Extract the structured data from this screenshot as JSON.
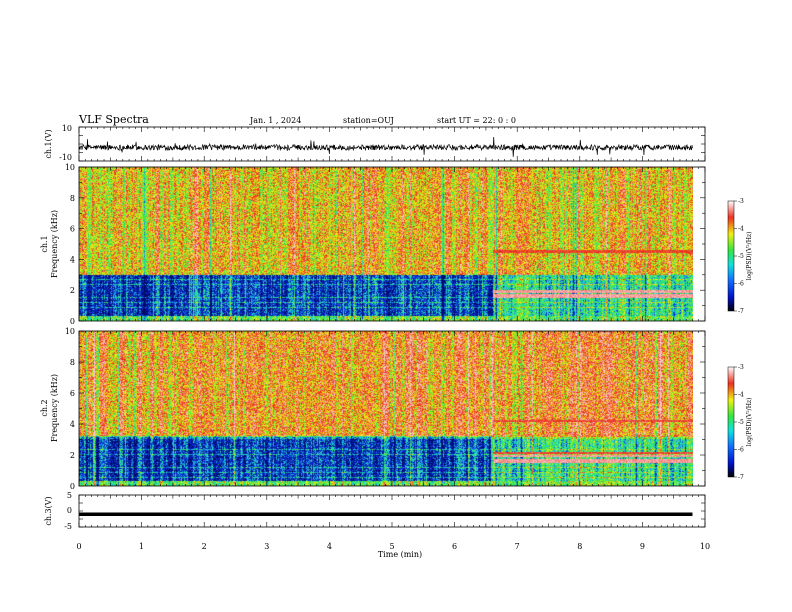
{
  "header": {
    "title": "VLF Spectra",
    "date": "Jan. 1 , 2024",
    "station": "station=OUJ",
    "start": "start UT =  22: 0  : 0"
  },
  "chart_data": [
    {
      "type": "line",
      "name": "ch1-waveform",
      "ylabel": "ch.1(V)",
      "ylim": [
        -10,
        10
      ],
      "yticks": [
        "10",
        "-10"
      ],
      "xlim": [
        0,
        10
      ],
      "trace": "noisy waveform centered near -2 V, about 0 to -4 V, spikes to ~+5 and ~-8 V, ends at 9.8 min"
    },
    {
      "type": "heatmap",
      "name": "ch1-spectrogram",
      "ylabel_line1": "ch.1",
      "ylabel_line2": "Frequency (kHz)",
      "ylim": [
        0,
        10
      ],
      "yticks": [
        "0",
        "2",
        "4",
        "6",
        "8",
        "10"
      ],
      "xlim": [
        0,
        10
      ],
      "data_end_min": 9.8,
      "description": "broadband red/yellow above ~3 kHz; dark blue band 0.3-3 kHz until ~6.6 min, then strong lines near 1.5-2 kHz and 4.5 kHz"
    },
    {
      "type": "heatmap",
      "name": "ch2-spectrogram",
      "ylabel_line1": "ch.2",
      "ylabel_line2": "Frequency (kHz)",
      "ylim": [
        0,
        10
      ],
      "yticks": [
        "0",
        "2",
        "4",
        "6",
        "8",
        "10"
      ],
      "xlim": [
        0,
        10
      ],
      "data_end_min": 9.8
    },
    {
      "type": "line",
      "name": "ch3-trace",
      "ylabel": "ch.3(V)",
      "ylim": [
        -5,
        5
      ],
      "yticks": [
        "5",
        "0",
        "-5"
      ],
      "xlim": [
        0,
        10
      ],
      "constant_value": -1
    }
  ],
  "xaxis": {
    "label": "Time (min)",
    "ticks": [
      "0",
      "1",
      "2",
      "3",
      "4",
      "5",
      "6",
      "7",
      "8",
      "9",
      "10"
    ]
  },
  "colorbar": {
    "label": "log(PSD)(V²/Hz)",
    "ticks": [
      "-3",
      "-4",
      "-5",
      "-6",
      "-7"
    ],
    "range": [
      -7,
      -3
    ]
  },
  "colors": {
    "red": "#e8261c",
    "yellow": "#f4ee10",
    "green": "#33e84a",
    "cyan": "#22d8d0",
    "blue": "#1030e0",
    "navy": "#000a6a"
  }
}
